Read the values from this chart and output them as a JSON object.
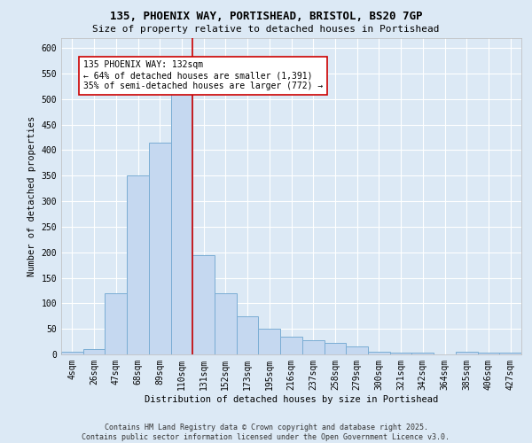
{
  "title_line1": "135, PHOENIX WAY, PORTISHEAD, BRISTOL, BS20 7GP",
  "title_line2": "Size of property relative to detached houses in Portishead",
  "xlabel": "Distribution of detached houses by size in Portishead",
  "ylabel": "Number of detached properties",
  "footer_line1": "Contains HM Land Registry data © Crown copyright and database right 2025.",
  "footer_line2": "Contains public sector information licensed under the Open Government Licence v3.0.",
  "bar_labels": [
    "4sqm",
    "26sqm",
    "47sqm",
    "68sqm",
    "89sqm",
    "110sqm",
    "131sqm",
    "152sqm",
    "173sqm",
    "195sqm",
    "216sqm",
    "237sqm",
    "258sqm",
    "279sqm",
    "300sqm",
    "321sqm",
    "342sqm",
    "364sqm",
    "385sqm",
    "406sqm",
    "427sqm"
  ],
  "bar_values": [
    5,
    10,
    120,
    350,
    415,
    560,
    195,
    120,
    75,
    50,
    35,
    28,
    22,
    15,
    5,
    3,
    3,
    0,
    5,
    3,
    3
  ],
  "bar_color": "#c5d8f0",
  "bar_edge_color": "#7aadd4",
  "annotation_text": "135 PHOENIX WAY: 132sqm\n← 64% of detached houses are smaller (1,391)\n35% of semi-detached houses are larger (772) →",
  "vline_index": 6,
  "vline_color": "#cc0000",
  "annotation_box_edge_color": "#cc0000",
  "annotation_box_face_color": "#ffffff",
  "ylim": [
    0,
    620
  ],
  "yticks": [
    0,
    50,
    100,
    150,
    200,
    250,
    300,
    350,
    400,
    450,
    500,
    550,
    600
  ],
  "background_color": "#dce9f5",
  "plot_background_color": "#dce9f5",
  "grid_color": "#ffffff",
  "title_fontsize": 9,
  "subtitle_fontsize": 8,
  "axis_label_fontsize": 7.5,
  "tick_fontsize": 7,
  "annotation_fontsize": 7,
  "footer_fontsize": 6
}
